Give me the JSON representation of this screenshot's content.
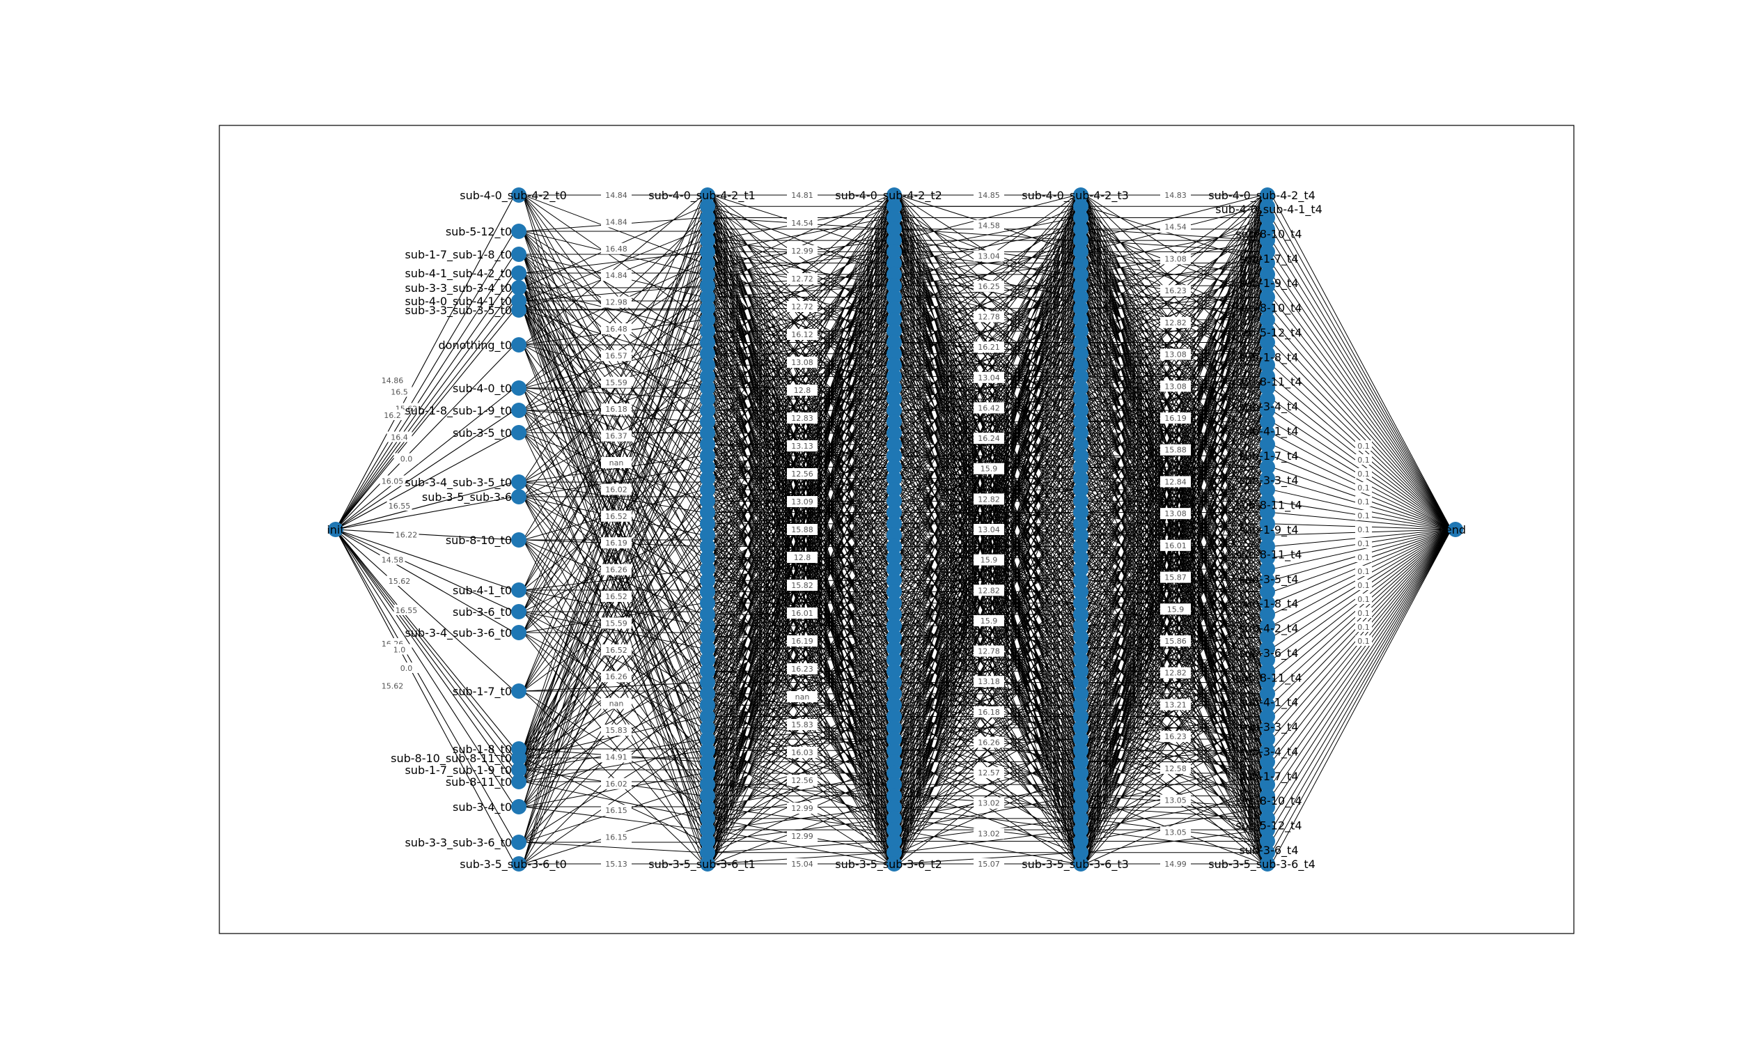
{
  "graph": {
    "color_node": "#1f77b4",
    "color_edge": "#000000",
    "color_frame": "#000000",
    "start_label": "init",
    "end_label": "end",
    "stages": [
      "t0",
      "t1",
      "t2",
      "t3",
      "t4"
    ],
    "top_row_labels": [
      "sub-4-0_sub-4-2_t0",
      "sub-4-0_sub-4-2_t1",
      "sub-4-0_sub-4-2_t2",
      "sub-4-0_sub-4-2_t3",
      "sub-4-0_sub-4-2_t4"
    ],
    "bottom_row_labels": [
      "sub-3-5_sub-3-6_t0",
      "sub-3-5_sub-3-6_t1",
      "sub-3-5_sub-3-6_t2",
      "sub-3-5_sub-3-6_t3",
      "sub-3-5_sub-3-6_t4"
    ],
    "t0_labels": [
      "sub-5-12_t0",
      "sub-1-7_sub-1-8_t0",
      "sub-4-1_sub-4-2_t0",
      "sub-3-3_sub-3-4_t0",
      "sub-4-0_sub-4-1_t0",
      "sub-3-3_sub-3-5_t0",
      "donothing_t0",
      "sub-4-0_t0",
      "sub-1-8_sub-1-9_t0",
      "sub-3-5_t0",
      "sub-3-4_sub-3-5_t0",
      "sub-3-5_sub-3-6",
      "sub-8-10_t0",
      "sub-4-1_t0",
      "sub-3-6_t0",
      "sub-3-4_sub-3-6_t0",
      "sub-1-7_t0",
      "sub-1-8_t0",
      "sub-8-10_sub-8-11_t0",
      "sub-1-7_sub-1-9_t0",
      "sub-8-11_t0",
      "sub-3-4_t0",
      "sub-3-3_sub-3-6_t0"
    ],
    "t4_labels": [
      "sub-4-0_sub-4-1_t4",
      "sub-8-10_t4",
      "sub-1-7_t4",
      "sub-1-9_t4",
      "sub-8-10_t4",
      "sub-5-12_t4",
      "sub-1-8_t4",
      "sub-8-11_t4",
      "sub-3-4_t4",
      "sub-4-1_t4",
      "sub-1-7_t4",
      "sub-3-3_t4",
      "sub-8-11_t4",
      "sub-1-9_t4",
      "sub-8-11_t4",
      "sub-3-5_t4",
      "sub-1-8_t4",
      "sub-4-2_t4",
      "sub-3-6_t4",
      "sub-8-11_t4",
      "sub-4-1_t4",
      "sub-3-3_t4",
      "sub-3-4_t4",
      "sub-1-7_t4",
      "sub-8-10_t4",
      "sub-5-12_t4",
      "sub-3-6_t4"
    ],
    "init_edge_weights": [
      "14.86",
      "16.5",
      "15.62",
      "16.2",
      "16.4",
      "0.0",
      "16.05",
      "16.55",
      "16.22",
      "14.58",
      "15.62",
      "16.55",
      "16.26",
      "1.0",
      "0.0",
      "15.62"
    ],
    "edge_weight_columns": [
      [
        "14.84",
        "14.84",
        "16.48",
        "14.84",
        "12.98",
        "16.48",
        "16.57",
        "15.59",
        "16.18",
        "16.37",
        "nan",
        "16.02",
        "16.52",
        "16.19",
        "16.26",
        "16.52",
        "15.59",
        "16.52",
        "16.26",
        "nan",
        "15.83",
        "14.91",
        "16.02",
        "16.15",
        "16.15",
        "15.13"
      ],
      [
        "14.81",
        "14.54",
        "12.99",
        "12.72",
        "12.72",
        "16.12",
        "13.08",
        "12.8",
        "12.83",
        "13.13",
        "12.56",
        "13.09",
        "15.88",
        "12.8",
        "15.82",
        "16.01",
        "16.19",
        "16.23",
        "nan",
        "15.83",
        "16.03",
        "12.56",
        "12.99",
        "12.99",
        "15.04"
      ],
      [
        "14.85",
        "14.58",
        "13.04",
        "16.25",
        "12.78",
        "16.21",
        "13.04",
        "16.42",
        "16.24",
        "15.9",
        "12.82",
        "13.04",
        "15.9",
        "12.82",
        "15.9",
        "12.78",
        "13.18",
        "16.18",
        "16.26",
        "12.57",
        "13.02",
        "13.02",
        "15.07"
      ],
      [
        "14.83",
        "14.54",
        "13.08",
        "16.23",
        "12.82",
        "13.08",
        "13.08",
        "16.19",
        "15.88",
        "12.84",
        "13.08",
        "16.01",
        "15.87",
        "15.9",
        "15.86",
        "12.82",
        "13.21",
        "16.23",
        "12.58",
        "13.05",
        "13.05",
        "14.99"
      ]
    ],
    "end_edge_weights": [
      "0.1",
      "0.1",
      "0.1",
      "0.1",
      "0.1",
      "0.1",
      "0.1",
      "0.1",
      "0.1",
      "0.1",
      "0.1",
      "0.1",
      "0.1",
      "0.1",
      "0.1"
    ]
  }
}
